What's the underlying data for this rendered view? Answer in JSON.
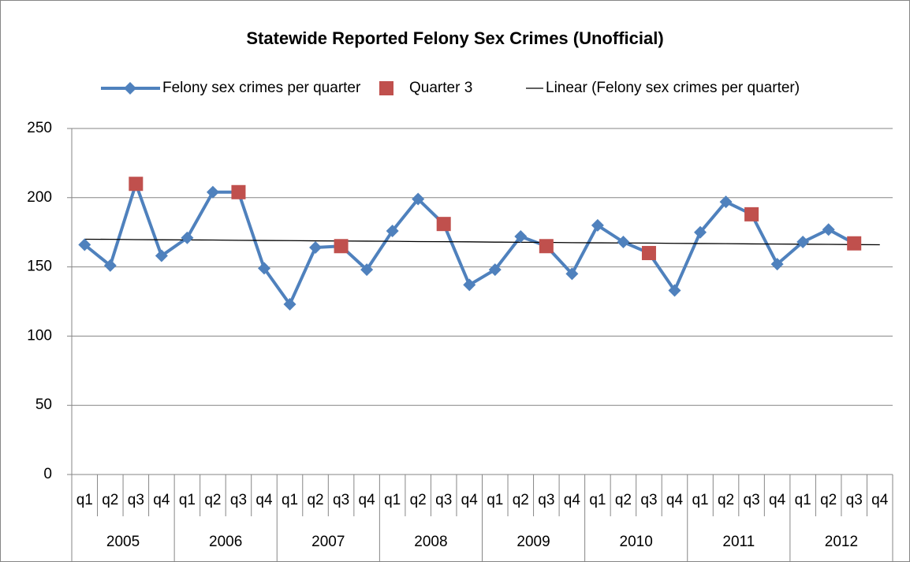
{
  "chart_data": {
    "type": "line",
    "title": "Statewide Reported Felony Sex Crimes (Unofficial)",
    "categories": [
      "q1",
      "q2",
      "q3",
      "q4",
      "q1",
      "q2",
      "q3",
      "q4",
      "q1",
      "q2",
      "q3",
      "q4",
      "q1",
      "q2",
      "q3",
      "q4",
      "q1",
      "q2",
      "q3",
      "q4",
      "q1",
      "q2",
      "q3",
      "q4",
      "q1",
      "q2",
      "q3",
      "q4",
      "q1",
      "q2",
      "q3",
      "q4"
    ],
    "years": [
      "2005",
      "2006",
      "2007",
      "2008",
      "2009",
      "2010",
      "2011",
      "2012"
    ],
    "series": [
      {
        "name": "Felony sex crimes per quarter",
        "color": "#4f81bd",
        "marker": "diamond",
        "values": [
          166,
          151,
          210,
          158,
          171,
          204,
          204,
          149,
          123,
          164,
          165,
          148,
          176,
          199,
          181,
          137,
          148,
          172,
          165,
          145,
          180,
          168,
          160,
          133,
          175,
          197,
          188,
          152,
          168,
          177,
          167,
          null
        ]
      },
      {
        "name": "Quarter 3",
        "color": "#c0504d",
        "marker": "square",
        "values": [
          null,
          null,
          210,
          null,
          null,
          null,
          204,
          null,
          null,
          null,
          165,
          null,
          null,
          null,
          181,
          null,
          null,
          null,
          165,
          null,
          null,
          null,
          160,
          null,
          null,
          null,
          188,
          null,
          null,
          null,
          167,
          null
        ]
      },
      {
        "name": "Linear (Felony sex crimes per quarter)",
        "color": "#000000",
        "marker": "none",
        "values": [
          170,
          169.9,
          169.7,
          169.6,
          169.5,
          169.4,
          169.2,
          169.1,
          169.0,
          168.8,
          168.7,
          168.6,
          168.5,
          168.3,
          168.2,
          168.1,
          167.9,
          167.8,
          167.7,
          167.5,
          167.4,
          167.3,
          167.2,
          167.0,
          166.9,
          166.8,
          166.6,
          166.5,
          166.4,
          166.3,
          166.1,
          166.0
        ]
      }
    ],
    "ylim": [
      0,
      250
    ],
    "yticks": [
      0,
      50,
      100,
      150,
      200,
      250
    ],
    "grid": true,
    "legend": "top"
  }
}
